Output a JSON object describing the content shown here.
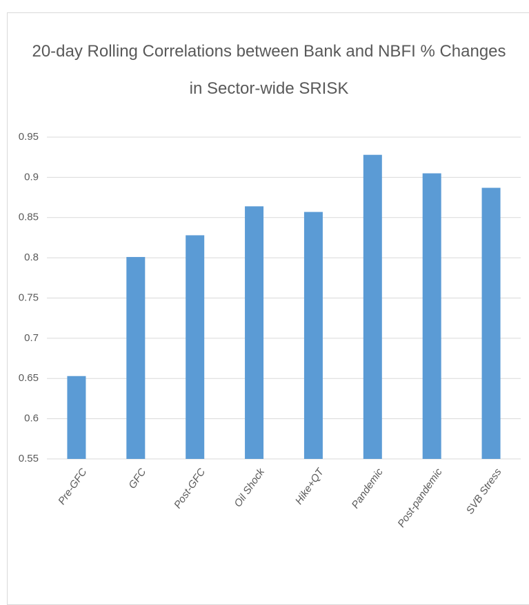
{
  "chart_data": {
    "type": "bar",
    "title": "20-day Rolling Correlations between Bank and NBFI % Changes in Sector-wide SRISK",
    "categories": [
      "Pre-GFC",
      "GFC",
      "Post-GFC",
      "Oil Shock",
      "Hike+QT",
      "Pandemic",
      "Post-pandemic",
      "SVB Stress"
    ],
    "values": [
      0.653,
      0.801,
      0.828,
      0.864,
      0.857,
      0.928,
      0.905,
      0.887
    ],
    "color": "#5b9bd5",
    "ylim": [
      0.55,
      0.95
    ],
    "yticks": [
      0.55,
      0.6,
      0.65,
      0.7,
      0.75,
      0.8,
      0.85,
      0.9,
      0.95
    ],
    "grid": true
  }
}
